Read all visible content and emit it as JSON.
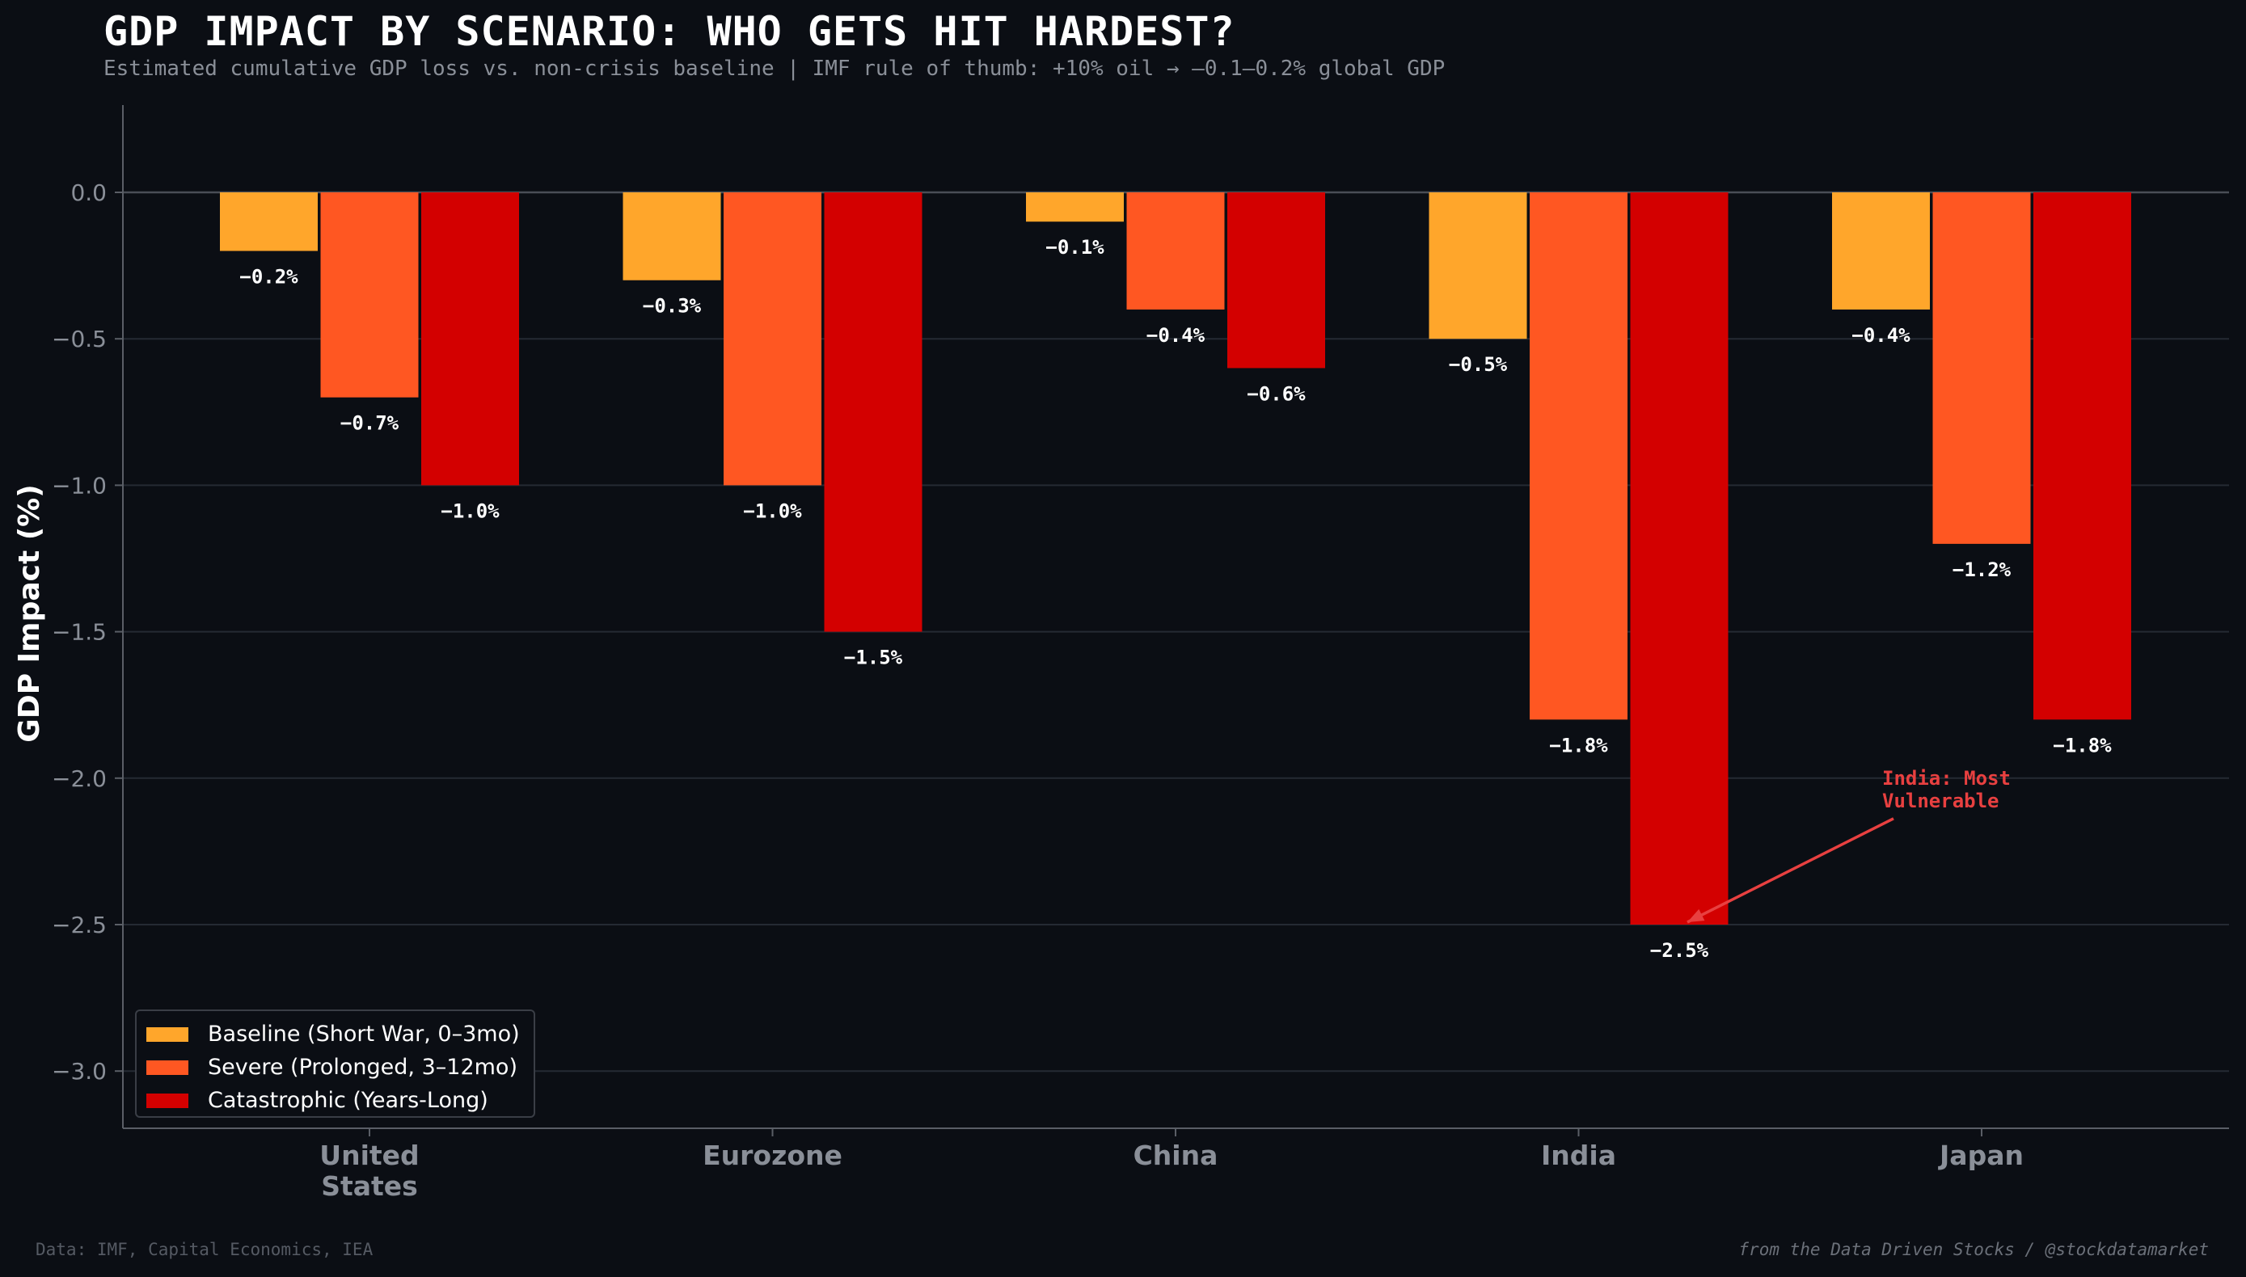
{
  "header": {
    "title": "GDP IMPACT BY SCENARIO: WHO GETS HIT HARDEST?",
    "subtitle": "Estimated cumulative GDP loss vs. non-crisis baseline | IMF rule of thumb: +10% oil → –0.1–0.2% global GDP"
  },
  "footer": {
    "source": "Data: IMF, Capital Economics, IEA",
    "credit": "from the Data Driven Stocks / @stockdatamarket"
  },
  "legend": {
    "items": [
      {
        "label": "Baseline (Short War, 0–3mo)",
        "color": "#ffa62b"
      },
      {
        "label": "Severe (Prolonged, 3–12mo)",
        "color": "#ff5722"
      },
      {
        "label": "Catastrophic (Years-Long)",
        "color": "#d30000"
      }
    ]
  },
  "chart_data": {
    "type": "bar",
    "title": "GDP IMPACT BY SCENARIO: WHO GETS HIT HARDEST?",
    "xlabel": "",
    "ylabel": "GDP Impact (%)",
    "ylim": [
      -3.2,
      0.3
    ],
    "yticks": [
      0.0,
      -0.5,
      -1.0,
      -1.5,
      -2.0,
      -2.5,
      -3.0
    ],
    "ytick_labels": [
      "0.0",
      "−0.5",
      "−1.0",
      "−1.5",
      "−2.0",
      "−2.5",
      "−3.0"
    ],
    "grid": true,
    "legend_position": "lower-left",
    "categories": [
      [
        "United",
        "States"
      ],
      [
        "Eurozone"
      ],
      [
        "China"
      ],
      [
        "India"
      ],
      [
        "Japan"
      ]
    ],
    "series": [
      {
        "name": "Baseline (Short War, 0–3mo)",
        "color": "#ffa62b",
        "values": [
          -0.2,
          -0.3,
          -0.1,
          -0.5,
          -0.4
        ],
        "labels": [
          "−0.2%",
          "−0.3%",
          "−0.1%",
          "−0.5%",
          "−0.4%"
        ]
      },
      {
        "name": "Severe (Prolonged, 3–12mo)",
        "color": "#ff5722",
        "values": [
          -0.7,
          -1.0,
          -0.4,
          -1.8,
          -1.2
        ],
        "labels": [
          "−0.7%",
          "−1.0%",
          "−0.4%",
          "−1.8%",
          "−1.2%"
        ]
      },
      {
        "name": "Catastrophic (Years-Long)",
        "color": "#d30000",
        "values": [
          -1.0,
          -1.5,
          -0.6,
          -2.5,
          -1.8
        ],
        "labels": [
          "−1.0%",
          "−1.5%",
          "−0.6%",
          "−2.5%",
          "−1.8%"
        ]
      }
    ],
    "annotation": {
      "text": [
        "India: Most",
        "Vulnerable"
      ],
      "color": "#e84040",
      "target_category": 3,
      "target_series": 2,
      "target_value": -2.5,
      "text_anchor_value": -2.0
    }
  }
}
